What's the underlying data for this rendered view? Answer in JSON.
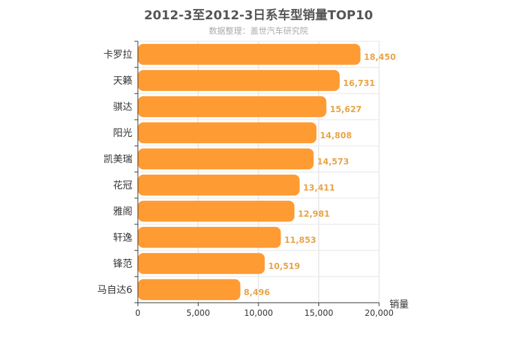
{
  "chart_data": {
    "type": "bar",
    "orientation": "horizontal",
    "title": "2012-3至2012-3日系车型销量TOP10",
    "subtitle": "数据整理：盖世汽车研究院",
    "categories": [
      "卡罗拉",
      "天籁",
      "骐达",
      "阳光",
      "凯美瑞",
      "花冠",
      "雅阁",
      "轩逸",
      "锋范",
      "马自达6"
    ],
    "values": [
      18450,
      16731,
      15627,
      14808,
      14573,
      13411,
      12981,
      11853,
      10519,
      8496
    ],
    "data_labels": [
      "18,450",
      "16,731",
      "15,627",
      "14,808",
      "14,573",
      "13,411",
      "12,981",
      "11,853",
      "10,519",
      "8,496"
    ],
    "xlabel": "销量",
    "ylabel": "",
    "xlim": [
      0,
      20000
    ],
    "x_ticks": [
      0,
      5000,
      10000,
      15000,
      20000
    ],
    "x_tick_labels": [
      "0",
      "5,000",
      "10,000",
      "15,000",
      "20,000"
    ],
    "grid": true,
    "bar_color": "#ff9b33",
    "label_color": "#e8a54a"
  }
}
